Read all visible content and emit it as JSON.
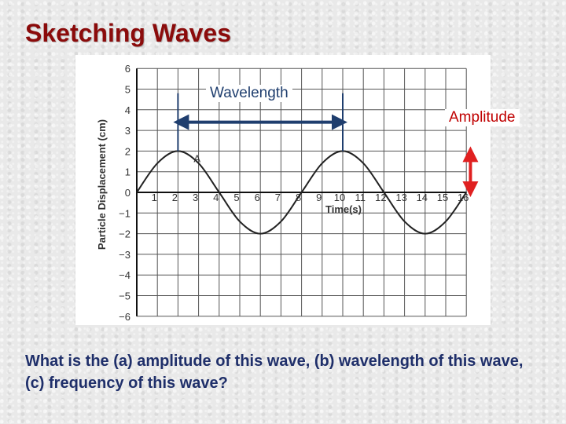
{
  "slide": {
    "title": "Sketching Waves",
    "question": "What is the (a) amplitude of this wave, (b) wavelength of this wave, (c) frequency of this wave?"
  },
  "colors": {
    "title": "#8b0b0b",
    "question": "#1f2f6a",
    "wavelength_arrow": "#1f3e6e",
    "amplitude_arrow": "#e02020",
    "curve": "#222222",
    "grid": "#555555"
  },
  "chart_data": {
    "type": "line",
    "xlabel": "Time(s)",
    "ylabel": "Particle Displacement (cm)",
    "xlim": [
      0,
      16
    ],
    "ylim": [
      -6,
      6
    ],
    "x_ticks": [
      "1",
      "2",
      "3",
      "4",
      "5",
      "6",
      "7",
      "8",
      "9",
      "10",
      "11",
      "12",
      "13",
      "14",
      "15",
      "16"
    ],
    "y_ticks": [
      "6",
      "5",
      "4",
      "3",
      "2",
      "1",
      "0",
      "−1",
      "−2",
      "−3",
      "−4",
      "−5",
      "−6"
    ],
    "grid": true,
    "series": [
      {
        "x": [
          0,
          1,
          2,
          3,
          4,
          5,
          6,
          7,
          8,
          9,
          10,
          11,
          12,
          13,
          14,
          15,
          16
        ],
        "y": [
          0,
          1.41,
          2,
          1.41,
          0,
          -1.41,
          -2,
          -1.41,
          0,
          1.41,
          2,
          1.41,
          0,
          -1.41,
          -2,
          -1.41,
          0
        ]
      }
    ],
    "point_label": {
      "text": "A",
      "x": 2,
      "y": 2
    },
    "annotations": {
      "wavelength": {
        "label": "Wavelength",
        "from_x": 2,
        "to_x": 10,
        "y": 3.4
      },
      "amplitude": {
        "label": "Amplitude",
        "x": 16.2,
        "from_y": 0,
        "to_y": 2
      }
    }
  }
}
